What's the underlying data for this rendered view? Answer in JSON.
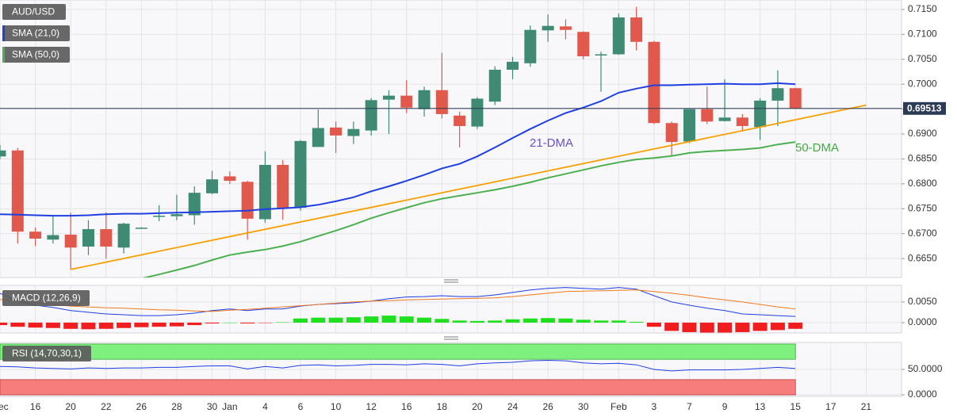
{
  "chart_data": [
    {
      "type": "candlestick",
      "title": "AUD/USD",
      "xlim": [
        0,
        51
      ],
      "xticks": [
        {
          "value": 0,
          "label": "Dec"
        },
        {
          "value": 2,
          "label": "16"
        },
        {
          "value": 4,
          "label": "20"
        },
        {
          "value": 6,
          "label": "22"
        },
        {
          "value": 8,
          "label": "26"
        },
        {
          "value": 10,
          "label": "28"
        },
        {
          "value": 12,
          "label": "30"
        },
        {
          "value": 13,
          "label": "Jan"
        },
        {
          "value": 15,
          "label": "4"
        },
        {
          "value": 17,
          "label": "6"
        },
        {
          "value": 19,
          "label": "10"
        },
        {
          "value": 21,
          "label": "12"
        },
        {
          "value": 23,
          "label": "16"
        },
        {
          "value": 25,
          "label": "18"
        },
        {
          "value": 27,
          "label": "20"
        },
        {
          "value": 29,
          "label": "24"
        },
        {
          "value": 31,
          "label": "26"
        },
        {
          "value": 33,
          "label": "30"
        },
        {
          "value": 35,
          "label": "Feb"
        },
        {
          "value": 37,
          "label": "3"
        },
        {
          "value": 39,
          "label": "7"
        },
        {
          "value": 41,
          "label": "9"
        },
        {
          "value": 43,
          "label": "13"
        },
        {
          "value": 45,
          "label": "15"
        },
        {
          "value": 47,
          "label": "17"
        },
        {
          "value": 49,
          "label": "21"
        }
      ],
      "open": [
        0.6855,
        0.6867,
        0.6704,
        0.6688,
        0.6698,
        0.6674,
        0.6709,
        0.6672,
        0.6711,
        0.6735,
        0.6735,
        0.6737,
        0.6781,
        0.6815,
        0.6804,
        0.6729,
        0.6838,
        0.6752,
        0.6874,
        0.6913,
        0.6896,
        0.6907,
        0.6969,
        0.6977,
        0.695,
        0.6988,
        0.6937,
        0.6915,
        0.6965,
        0.7029,
        0.7042,
        0.7108,
        0.7116,
        0.7105,
        0.7059,
        0.706,
        0.7134,
        0.7085,
        0.6922,
        0.6885,
        0.695,
        0.6926,
        0.6933,
        0.6914,
        0.6967,
        0.6992
      ],
      "high": [
        0.6878,
        0.6872,
        0.6712,
        0.6735,
        0.6742,
        0.6727,
        0.6743,
        0.6722,
        0.6713,
        0.6757,
        0.6778,
        0.6795,
        0.6826,
        0.6825,
        0.6806,
        0.6865,
        0.6848,
        0.6888,
        0.6949,
        0.6925,
        0.6925,
        0.6972,
        0.6988,
        0.7008,
        0.6995,
        0.7063,
        0.6945,
        0.6974,
        0.7036,
        0.7055,
        0.7118,
        0.714,
        0.713,
        0.7106,
        0.7065,
        0.7142,
        0.7155,
        0.7087,
        0.6925,
        0.695,
        0.6995,
        0.701,
        0.694,
        0.6972,
        0.7028,
        0.6993
      ],
      "low": [
        0.685,
        0.668,
        0.6675,
        0.668,
        0.6628,
        0.6657,
        0.665,
        0.666,
        0.6711,
        0.6725,
        0.6727,
        0.6718,
        0.6779,
        0.68,
        0.6688,
        0.6722,
        0.6728,
        0.6746,
        0.6874,
        0.6862,
        0.688,
        0.6897,
        0.69,
        0.6942,
        0.6935,
        0.6931,
        0.6873,
        0.691,
        0.6958,
        0.701,
        0.7035,
        0.7085,
        0.709,
        0.705,
        0.6985,
        0.7059,
        0.7068,
        0.692,
        0.6855,
        0.6882,
        0.692,
        0.6925,
        0.6905,
        0.6888,
        0.6916,
        0.695
      ],
      "close": [
        0.6867,
        0.6704,
        0.669,
        0.6697,
        0.6672,
        0.6709,
        0.6674,
        0.672,
        0.6712,
        0.6736,
        0.6739,
        0.6782,
        0.6809,
        0.6806,
        0.673,
        0.6838,
        0.6752,
        0.6886,
        0.6912,
        0.6897,
        0.691,
        0.6968,
        0.6977,
        0.6953,
        0.6988,
        0.694,
        0.6916,
        0.6971,
        0.7029,
        0.7045,
        0.7109,
        0.7117,
        0.7109,
        0.7056,
        0.706,
        0.7134,
        0.7085,
        0.6922,
        0.6884,
        0.695,
        0.6925,
        0.6933,
        0.6916,
        0.6967,
        0.6992,
        0.6951
      ],
      "up_color": "#3e8a72",
      "down_color": "#e0594c",
      "ylim": [
        0.6612,
        0.7169
      ],
      "yticks": [
        {
          "value": 0.665,
          "label": "0.6650"
        },
        {
          "value": 0.67,
          "label": "0.6700"
        },
        {
          "value": 0.675,
          "label": "0.6750"
        },
        {
          "value": 0.68,
          "label": "0.6800"
        },
        {
          "value": 0.685,
          "label": "0.6850"
        },
        {
          "value": 0.69,
          "label": "0.6900"
        },
        {
          "value": 0.695,
          "label": "0.6950"
        },
        {
          "value": 0.7,
          "label": "0.7000"
        },
        {
          "value": 0.705,
          "label": "0.7050"
        },
        {
          "value": 0.71,
          "label": "0.7100"
        },
        {
          "value": 0.715,
          "label": "0.7150"
        }
      ],
      "grid": true,
      "overlays": [
        {
          "name": "SMA (21,0)",
          "color": "#1f3fe0",
          "values": [
            0.6739,
            0.6738,
            0.6737,
            0.6736,
            0.6736,
            0.6737,
            0.6739,
            0.674,
            0.674,
            0.6741,
            0.6742,
            0.6743,
            0.6744,
            0.6745,
            0.6746,
            0.6749,
            0.6751,
            0.6753,
            0.6758,
            0.6765,
            0.6773,
            0.6785,
            0.6795,
            0.6806,
            0.6818,
            0.6831,
            0.684,
            0.6855,
            0.6873,
            0.6892,
            0.691,
            0.6927,
            0.6942,
            0.6953,
            0.6966,
            0.6983,
            0.6991,
            0.6998,
            0.6998,
            0.6999,
            0.7,
            0.7001,
            0.7,
            0.7,
            0.7002,
            0.7
          ]
        },
        {
          "name": "SMA (50,0)",
          "color": "#4caf50",
          "values": [
            null,
            null,
            null,
            null,
            null,
            null,
            null,
            null,
            0.661,
            0.6618,
            0.6627,
            0.6636,
            0.6647,
            0.6657,
            0.6663,
            0.6668,
            0.6675,
            0.6684,
            0.6695,
            0.6706,
            0.6718,
            0.6731,
            0.6742,
            0.6752,
            0.6762,
            0.677,
            0.6776,
            0.6782,
            0.6788,
            0.6795,
            0.6803,
            0.6812,
            0.682,
            0.6828,
            0.6836,
            0.6843,
            0.6849,
            0.6852,
            0.6856,
            0.6862,
            0.6865,
            0.6867,
            0.6869,
            0.6872,
            0.6879,
            0.6884
          ]
        }
      ],
      "trendline": {
        "color": "#f5a000",
        "x": [
          4,
          49
        ],
        "values": [
          0.6628,
          0.6958
        ]
      },
      "annotations": [
        {
          "text": "21-DMA",
          "color": "#6a52c4"
        },
        {
          "text": "50-DMA",
          "color": "#45a845"
        }
      ],
      "last_price": 0.69513,
      "last_price_color": "#2b3a55"
    },
    {
      "type": "macd",
      "title": "MACD (12,26,9)",
      "ylim": [
        -0.0025,
        0.009
      ],
      "yticks": [
        {
          "value": 0,
          "label": "0.0000"
        },
        {
          "value": 0.005,
          "label": "0.0050"
        }
      ],
      "histogram": {
        "up_color": "#1ee01e",
        "down_color": "#f01e1e",
        "values": [
          -0.0006,
          -0.001,
          -0.0012,
          -0.0013,
          -0.0015,
          -0.0016,
          -0.0015,
          -0.0013,
          -0.0011,
          -0.001,
          -0.0009,
          -0.0006,
          -0.0002,
          0.0,
          -0.0002,
          -0.0001,
          0.0001,
          0.001,
          0.0012,
          0.0012,
          0.0013,
          0.0015,
          0.0017,
          0.0015,
          0.0012,
          0.0009,
          0.0005,
          0.0004,
          0.0005,
          0.0008,
          0.001,
          0.0011,
          0.001,
          0.0007,
          0.0005,
          0.0005,
          0.0002,
          -0.001,
          -0.002,
          -0.0023,
          -0.0024,
          -0.0024,
          -0.0023,
          -0.002,
          -0.0018,
          -0.0015
        ]
      },
      "series": [
        {
          "color": "#1f3fe0",
          "values": [
            0.0071,
            0.0052,
            0.0042,
            0.0037,
            0.0029,
            0.0025,
            0.0021,
            0.0019,
            0.0017,
            0.0017,
            0.0019,
            0.0023,
            0.0029,
            0.0033,
            0.0029,
            0.0033,
            0.0033,
            0.004,
            0.0044,
            0.0046,
            0.0048,
            0.0052,
            0.0058,
            0.0062,
            0.0063,
            0.0065,
            0.0063,
            0.0063,
            0.0067,
            0.0073,
            0.0079,
            0.0083,
            0.0085,
            0.0083,
            0.0081,
            0.0085,
            0.0081,
            0.0065,
            0.005,
            0.0042,
            0.0035,
            0.0029,
            0.0021,
            0.0019,
            0.0017,
            0.0015
          ]
        },
        {
          "color": "#f07a1e",
          "values": [
            0.0056,
            0.0052,
            0.0048,
            0.0044,
            0.004,
            0.0038,
            0.0036,
            0.0035,
            0.0033,
            0.0031,
            0.003,
            0.0028,
            0.0027,
            0.003,
            0.0032,
            0.0035,
            0.0038,
            0.0041,
            0.0044,
            0.0047,
            0.005,
            0.0052,
            0.0053,
            0.0055,
            0.0056,
            0.0057,
            0.0058,
            0.0059,
            0.006,
            0.0063,
            0.0067,
            0.0071,
            0.0075,
            0.0076,
            0.0077,
            0.0078,
            0.0079,
            0.0075,
            0.0071,
            0.0066,
            0.006,
            0.0055,
            0.005,
            0.0044,
            0.0038,
            0.0033
          ]
        }
      ]
    },
    {
      "type": "rsi",
      "title": "RSI (14,70,30,1)",
      "ylim": [
        -3,
        103
      ],
      "yticks": [
        {
          "value": 0,
          "label": "0.0000"
        },
        {
          "value": 50,
          "label": "50.0000"
        }
      ],
      "range": [
        0,
        100
      ],
      "overbought": 70,
      "oversold": 30,
      "overbought_color": "#7df07d",
      "oversold_color": "#f77c7c",
      "color": "#1f3fe0",
      "values": [
        56,
        55,
        53,
        52,
        51,
        53,
        52,
        53,
        53,
        54,
        54,
        56,
        57,
        57,
        51,
        56,
        53,
        58,
        59,
        57,
        58,
        60,
        60,
        59,
        61,
        60,
        57,
        61,
        63,
        64,
        67,
        68,
        67,
        63,
        61,
        62,
        59,
        50,
        47,
        49,
        49,
        49,
        50,
        52,
        54,
        52
      ]
    }
  ]
}
